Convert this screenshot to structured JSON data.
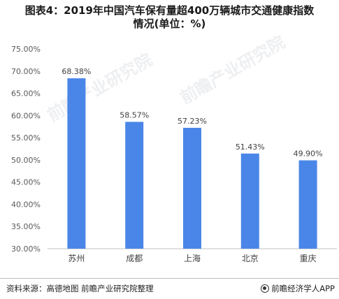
{
  "title_lines": [
    "图表4：2019年中国汽车保有量超400万辆城市交通健康指数",
    "情况(单位：%)"
  ],
  "chart_data": {
    "type": "bar",
    "title": "图表4：2019年中国汽车保有量超400万辆城市交通健康指数情况(单位：%)",
    "categories": [
      "苏州",
      "成都",
      "上海",
      "北京",
      "重庆"
    ],
    "values": [
      68.38,
      58.57,
      57.23,
      51.43,
      49.9
    ],
    "value_labels": [
      "68.38%",
      "58.57%",
      "57.23%",
      "51.43%",
      "49.90%"
    ],
    "ylim": [
      30,
      75
    ],
    "y_ticks": [
      30,
      35,
      40,
      45,
      50,
      55,
      60,
      65,
      70,
      75
    ],
    "y_tick_labels": [
      "30.00%",
      "35.00%",
      "40.00%",
      "45.00%",
      "50.00%",
      "55.00%",
      "60.00%",
      "65.00%",
      "70.00%",
      "75.00%"
    ],
    "xlabel": "",
    "ylabel": "",
    "grid": false,
    "legend": "none",
    "bar_color": "#4a86e8"
  },
  "footer": {
    "source": "资料来源：高德地图  前瞻产业研究院整理",
    "brand_icon": "qianzhan-logo-icon",
    "brand": "前瞻经济学人APP"
  },
  "watermarks": [
    "前瞻产业研究院",
    "前瞻产业研究院"
  ]
}
